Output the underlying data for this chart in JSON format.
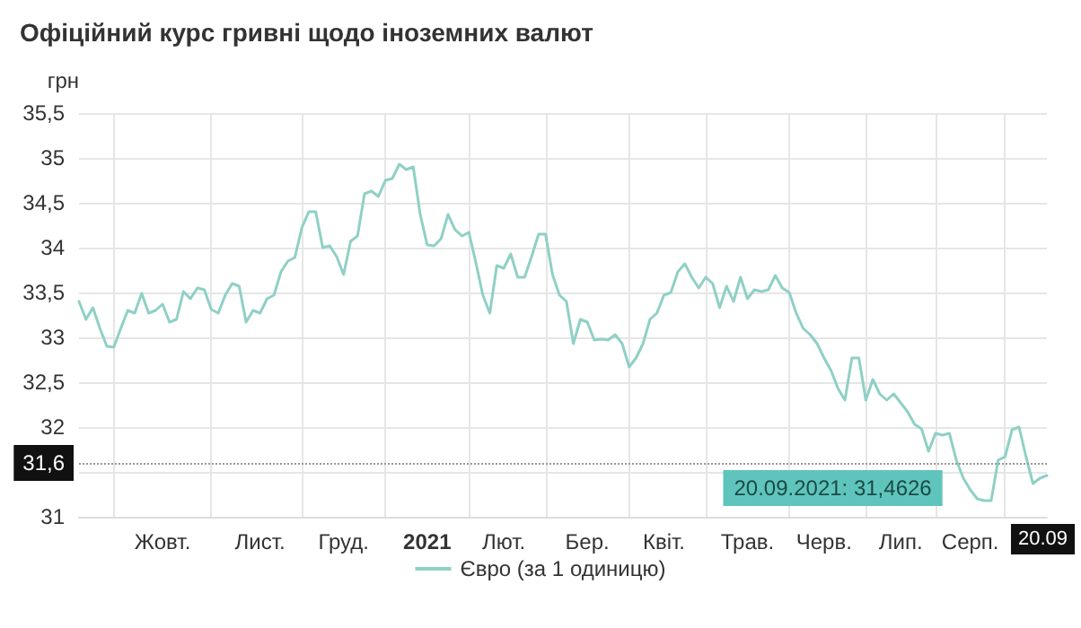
{
  "chart_data": {
    "type": "line",
    "title": "Офіційний курс гривні щодо іноземних валют",
    "ylabel": "грн",
    "categories": [
      null,
      null,
      null,
      null,
      null,
      null,
      null,
      null,
      null,
      null,
      null,
      null,
      "Жовт.",
      null,
      null,
      null,
      null,
      null,
      null,
      null,
      null,
      null,
      null,
      null,
      null,
      null,
      "Лист.",
      null,
      null,
      null,
      null,
      null,
      null,
      null,
      null,
      null,
      null,
      null,
      "Груд.",
      null,
      null,
      null,
      null,
      null,
      null,
      null,
      null,
      null,
      null,
      null,
      "2021",
      null,
      null,
      null,
      null,
      null,
      null,
      null,
      null,
      null,
      null,
      "Лют.",
      null,
      null,
      null,
      null,
      null,
      null,
      null,
      null,
      null,
      null,
      null,
      "Бер.",
      null,
      null,
      null,
      null,
      null,
      null,
      null,
      null,
      null,
      null,
      "Квіт.",
      null,
      null,
      null,
      null,
      null,
      null,
      null,
      null,
      null,
      null,
      null,
      "Трав.",
      null,
      null,
      null,
      null,
      null,
      null,
      null,
      null,
      null,
      null,
      "Черв.",
      null,
      null,
      null,
      null,
      null,
      null,
      null,
      null,
      null,
      null,
      "Лип.",
      null,
      null,
      null,
      null,
      null,
      null,
      null,
      null,
      null,
      "Серп.",
      null,
      null,
      null,
      null,
      null,
      null,
      null,
      null,
      null,
      null,
      null
    ],
    "series": [
      {
        "name": "Євро (за 1 одиницю)",
        "color": "#8fd0c6",
        "values": [
          33.4,
          33.2,
          33.33,
          33.1,
          32.9,
          32.89,
          33.1,
          33.3,
          33.27,
          33.49,
          33.27,
          33.3,
          33.37,
          33.17,
          33.2,
          33.51,
          33.43,
          33.55,
          33.53,
          33.31,
          33.27,
          33.47,
          33.6,
          33.57,
          33.17,
          33.3,
          33.27,
          33.43,
          33.47,
          33.73,
          33.85,
          33.89,
          34.22,
          34.4,
          34.4,
          34.0,
          34.02,
          33.9,
          33.7,
          34.07,
          34.13,
          34.6,
          34.63,
          34.57,
          34.75,
          34.77,
          34.93,
          34.87,
          34.9,
          34.37,
          34.03,
          34.02,
          34.1,
          34.37,
          34.2,
          34.13,
          34.17,
          33.83,
          33.47,
          33.27,
          33.8,
          33.77,
          33.93,
          33.67,
          33.67,
          33.9,
          34.15,
          34.15,
          33.7,
          33.47,
          33.4,
          32.93,
          33.2,
          33.17,
          32.97,
          32.98,
          32.97,
          33.03,
          32.93,
          32.67,
          32.77,
          32.93,
          33.2,
          33.27,
          33.47,
          33.5,
          33.73,
          33.82,
          33.67,
          33.55,
          33.67,
          33.6,
          33.33,
          33.57,
          33.4,
          33.67,
          33.43,
          33.53,
          33.51,
          33.53,
          33.69,
          33.55,
          33.5,
          33.27,
          33.1,
          33.03,
          32.93,
          32.77,
          32.63,
          32.43,
          32.3,
          32.77,
          32.77,
          32.3,
          32.53,
          32.37,
          32.3,
          32.37,
          32.27,
          32.17,
          32.03,
          31.98,
          31.73,
          31.93,
          31.91,
          31.93,
          31.63,
          31.43,
          31.3,
          31.2,
          31.18,
          31.18,
          31.63,
          31.67,
          31.97,
          32.0,
          31.67,
          31.37,
          31.43,
          31.46
        ]
      }
    ],
    "ylim": [
      31,
      35.5
    ],
    "yticks": [
      31,
      {
        "value": 31.5,
        "label": null
      },
      32,
      {
        "value": 32.5,
        "label": "32,5"
      },
      33,
      {
        "value": 33.5,
        "label": "33,5"
      },
      34,
      {
        "value": 34.5,
        "label": "34,5"
      },
      35,
      {
        "value": 35.5,
        "label": "35,5"
      }
    ],
    "grid": true,
    "legend": "bottom",
    "marker": "none",
    "line_style": "solid",
    "ref_lines": [
      {
        "axis": "y",
        "value": 31.6,
        "label": "31,6",
        "line_style": "dotted",
        "color": "#999999"
      }
    ],
    "annotations": [
      "20.09.2021: 31,4626",
      "20.09"
    ]
  }
}
